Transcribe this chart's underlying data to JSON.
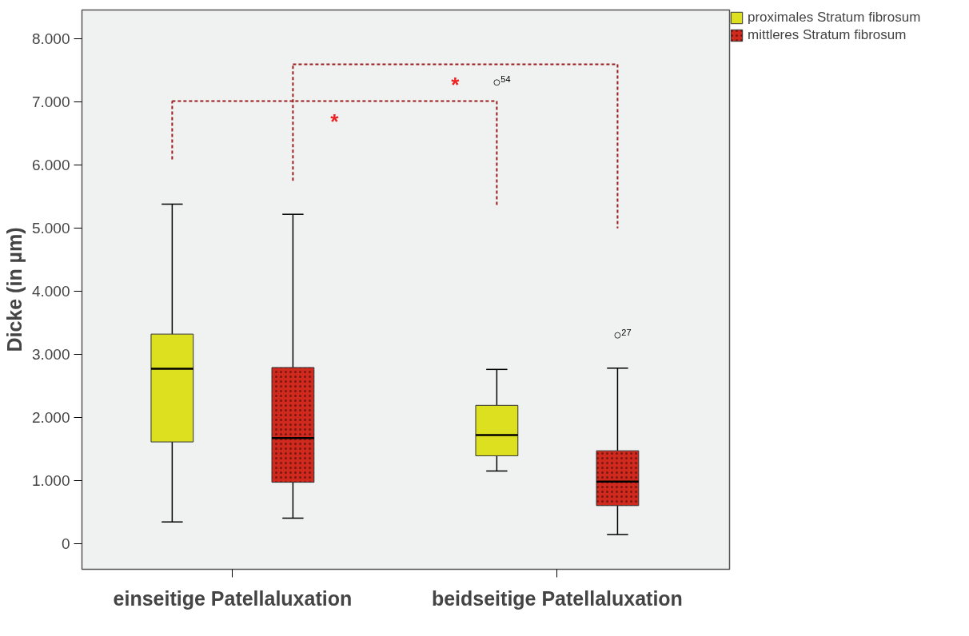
{
  "chart_data": {
    "type": "box",
    "ylabel": "Dicke (in µm)",
    "categories": [
      "einseitige Patellaluxation",
      "beidseitige Patellaluxation"
    ],
    "series": [
      {
        "name": "proximales Stratum fibrosum",
        "color": "#dde01e",
        "boxes": [
          {
            "low": 340,
            "q1": 1610,
            "median": 2770,
            "q3": 3320,
            "high": 5380
          },
          {
            "low": 1150,
            "q1": 1390,
            "median": 1720,
            "q3": 2190,
            "high": 2760,
            "outliers": [
              7310
            ]
          }
        ]
      },
      {
        "name": "mittleres Stratum fibrosum",
        "color": "#d02a1e",
        "boxes": [
          {
            "low": 400,
            "q1": 970,
            "median": 1670,
            "q3": 2790,
            "high": 5220
          },
          {
            "low": 140,
            "q1": 600,
            "median": 980,
            "q3": 1470,
            "high": 2780,
            "outliers": [
              3300
            ]
          }
        ]
      }
    ],
    "ylim": [
      -410,
      8460
    ],
    "yticks": [
      0,
      {
        "value": 1000,
        "label": "1.000"
      },
      {
        "value": 2000,
        "label": "2.000"
      },
      {
        "value": 3000,
        "label": "3.000"
      },
      {
        "value": 4000,
        "label": "4.000"
      },
      {
        "value": 5000,
        "label": "5.000"
      },
      {
        "value": 6000,
        "label": "6.000"
      },
      {
        "value": 7000,
        "label": "7.000"
      },
      {
        "value": 8000,
        "label": "8.000"
      }
    ],
    "grid": false,
    "legend": "top right",
    "annotations": [
      "*",
      "*",
      "54",
      "27"
    ]
  }
}
